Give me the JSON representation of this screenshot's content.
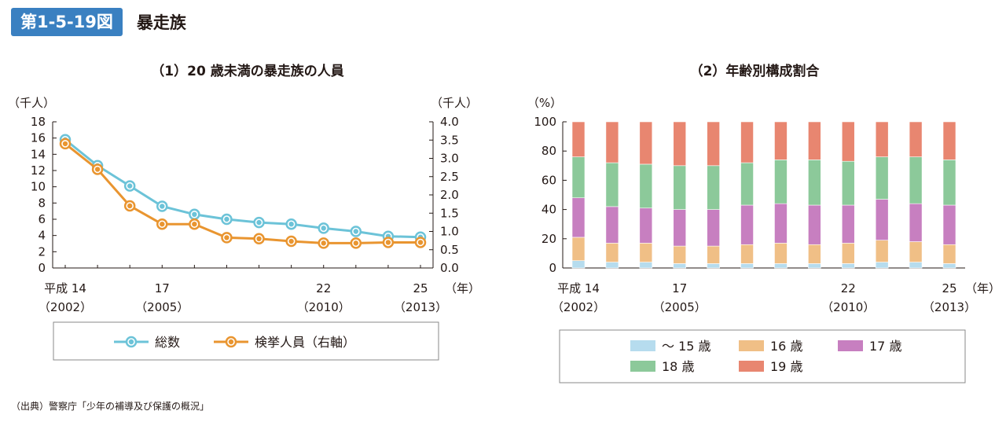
{
  "header": {
    "figure_number": "第1-5-19図",
    "title": "暴走族"
  },
  "source": "（出典）警察庁「少年の補導及び保護の概況」",
  "colors": {
    "badge": "#3a80c1",
    "total": "#6cc3d8",
    "arrested": "#e99530",
    "age_15": "#b6dcee",
    "age_16": "#f0bf86",
    "age_17": "#c77fc0",
    "age_18": "#8cc99a",
    "age_19": "#e88670"
  },
  "chart_data": [
    {
      "type": "line",
      "title": "（1）20 歳未満の暴走族の人員",
      "y_unit_left": "（千人）",
      "y_unit_right": "（千人）",
      "x_unit": "（年）",
      "x_tick_labels": [
        {
          "index": 0,
          "line1": "平成 14",
          "line2": "（2002）"
        },
        {
          "index": 3,
          "line1": "17",
          "line2": "（2005）"
        },
        {
          "index": 8,
          "line1": "22",
          "line2": "（2010）"
        },
        {
          "index": 11,
          "line1": "25",
          "line2": "（2013）"
        }
      ],
      "x": [
        2002,
        2003,
        2004,
        2005,
        2006,
        2007,
        2008,
        2009,
        2010,
        2011,
        2012,
        2013
      ],
      "y_left": {
        "min": 0,
        "max": 18,
        "step": 2
      },
      "y_right": {
        "min": 0,
        "max": 4.0,
        "step": 0.5
      },
      "series": [
        {
          "name": "総数",
          "axis": "left",
          "color_key": "total",
          "values": [
            15.8,
            12.6,
            10.1,
            7.6,
            6.6,
            6.0,
            5.6,
            5.4,
            4.9,
            4.5,
            3.9,
            3.8
          ]
        },
        {
          "name": "検挙人員（右軸）",
          "axis": "right",
          "color_key": "arrested",
          "values": [
            3.4,
            2.7,
            1.7,
            1.2,
            1.2,
            0.83,
            0.8,
            0.73,
            0.68,
            0.68,
            0.7,
            0.7
          ]
        }
      ],
      "grid": false,
      "legend_position": "bottom"
    },
    {
      "type": "bar",
      "stacked": true,
      "title": "（2）年齢別構成割合",
      "y_unit": "（%）",
      "x_unit": "（年）",
      "x_tick_labels": [
        {
          "index": 0,
          "line1": "平成 14",
          "line2": "（2002）"
        },
        {
          "index": 3,
          "line1": "17",
          "line2": "（2005）"
        },
        {
          "index": 8,
          "line1": "22",
          "line2": "（2010）"
        },
        {
          "index": 11,
          "line1": "25",
          "line2": "（2013）"
        }
      ],
      "categories": [
        2002,
        2003,
        2004,
        2005,
        2006,
        2007,
        2008,
        2009,
        2010,
        2011,
        2012,
        2013
      ],
      "ylim": [
        0,
        100
      ],
      "y_step": 20,
      "series": [
        {
          "name": "～ 15 歳",
          "color_key": "age_15",
          "values": [
            5,
            4,
            4,
            3,
            3,
            3,
            3,
            3,
            3,
            4,
            4,
            3
          ]
        },
        {
          "name": "16 歳",
          "color_key": "age_16",
          "values": [
            16,
            13,
            13,
            12,
            12,
            13,
            14,
            13,
            14,
            15,
            14,
            13
          ]
        },
        {
          "name": "17 歳",
          "color_key": "age_17",
          "values": [
            27,
            25,
            24,
            25,
            25,
            27,
            27,
            27,
            26,
            28,
            26,
            27
          ]
        },
        {
          "name": "18 歳",
          "color_key": "age_18",
          "values": [
            28,
            30,
            30,
            30,
            30,
            29,
            30,
            31,
            30,
            29,
            32,
            31
          ]
        },
        {
          "name": "19 歳",
          "color_key": "age_19",
          "values": [
            24,
            28,
            29,
            30,
            30,
            28,
            26,
            26,
            27,
            24,
            24,
            26
          ]
        }
      ],
      "grid": false,
      "legend_position": "bottom"
    }
  ]
}
